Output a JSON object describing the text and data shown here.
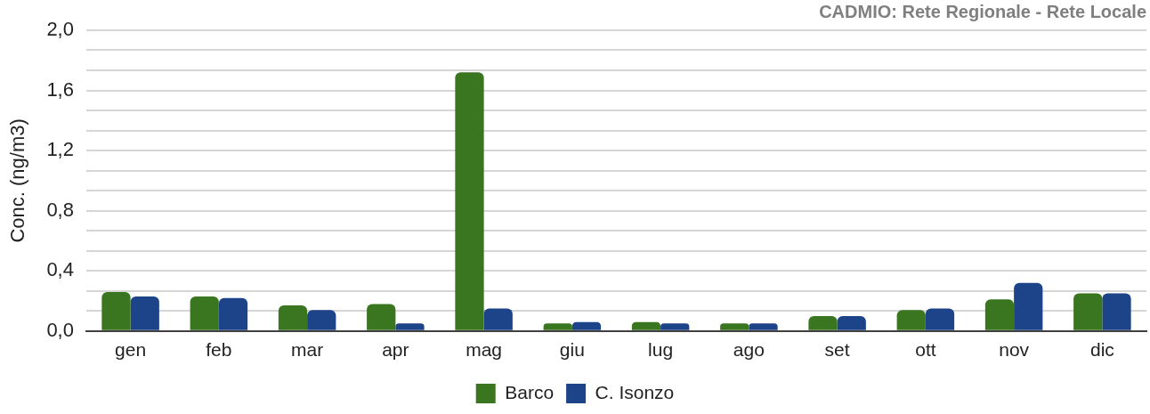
{
  "chart_data": {
    "type": "bar",
    "title": "CADMIO: Rete Regionale - Rete Locale",
    "ylabel": "Conc. (ng/m3)",
    "categories": [
      "gen",
      "feb",
      "mar",
      "apr",
      "mag",
      "giu",
      "lug",
      "ago",
      "set",
      "ott",
      "nov",
      "dic"
    ],
    "series": [
      {
        "name": "Barco",
        "color": "#3a7520",
        "values": [
          0.26,
          0.23,
          0.17,
          0.18,
          1.72,
          0.05,
          0.06,
          0.05,
          0.1,
          0.14,
          0.21,
          0.25
        ]
      },
      {
        "name": "C. Isonzo",
        "color": "#1d4489",
        "values": [
          0.23,
          0.22,
          0.14,
          0.05,
          0.15,
          0.06,
          0.05,
          0.05,
          0.1,
          0.15,
          0.32,
          0.25
        ]
      }
    ],
    "ylim": [
      0,
      2
    ],
    "yticks": [
      {
        "value": 0,
        "label": "0,0"
      },
      {
        "value": 0.133,
        "label": null
      },
      {
        "value": 0.267,
        "label": null
      },
      {
        "value": 0.4,
        "label": "0,4"
      },
      {
        "value": 0.533,
        "label": null
      },
      {
        "value": 0.667,
        "label": null
      },
      {
        "value": 0.8,
        "label": "0,8"
      },
      {
        "value": 0.933,
        "label": null
      },
      {
        "value": 1.067,
        "label": null
      },
      {
        "value": 1.2,
        "label": "1,2"
      },
      {
        "value": 1.333,
        "label": null
      },
      {
        "value": 1.467,
        "label": null
      },
      {
        "value": 1.6,
        "label": "1,6"
      },
      {
        "value": 1.733,
        "label": null
      },
      {
        "value": 1.867,
        "label": null
      },
      {
        "value": 2,
        "label": "2,0"
      }
    ],
    "grid": "y",
    "legend": "bottom"
  }
}
